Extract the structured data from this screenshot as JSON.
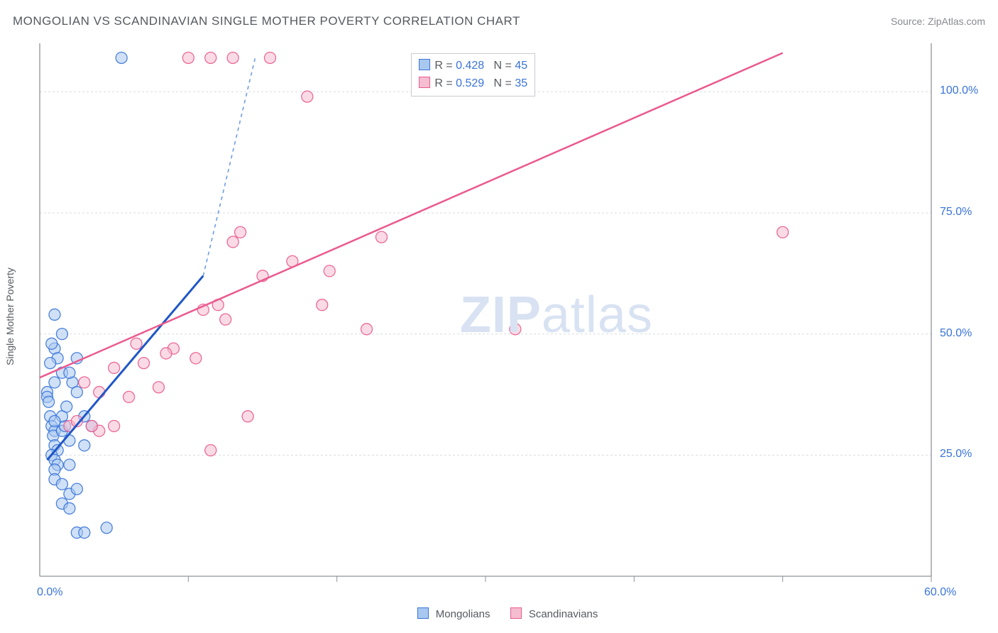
{
  "title": "MONGOLIAN VS SCANDINAVIAN SINGLE MOTHER POVERTY CORRELATION CHART",
  "source": "Source: ZipAtlas.com",
  "ylabel": "Single Mother Poverty",
  "watermark_zip": "ZIP",
  "watermark_atlas": "atlas",
  "chart": {
    "type": "scatter",
    "background_color": "#ffffff",
    "grid_color": "#d9dbdf",
    "grid_dash": "3,3",
    "axis_color": "#8f9398",
    "xlim": [
      0,
      60
    ],
    "ylim": [
      0,
      110
    ],
    "xtick_step": 10,
    "yticks": [
      25,
      50,
      75,
      100
    ],
    "xtick_labels": [
      "0.0%",
      "60.0%"
    ],
    "ytick_labels": [
      "25.0%",
      "50.0%",
      "75.0%",
      "100.0%"
    ],
    "marker_radius": 8,
    "marker_opacity": 0.55,
    "series": [
      {
        "name": "Mongolians",
        "swatch_fill": "#a9c8f0",
        "swatch_stroke": "#3a74d8",
        "marker_fill": "#a9c8f0",
        "marker_stroke": "#3a74d8",
        "R": "0.428",
        "N": "45",
        "trend": {
          "x1": 0.5,
          "y1": 24,
          "x2": 11,
          "y2": 62,
          "ext_x2": 14.5,
          "ext_y2": 107,
          "solid_color": "#1f57c7",
          "solid_width": 3,
          "dash_color": "#6f9de6",
          "dash_width": 1.6,
          "dash": "5,5"
        },
        "points": [
          [
            0.5,
            38
          ],
          [
            0.5,
            37
          ],
          [
            0.6,
            36
          ],
          [
            0.7,
            33
          ],
          [
            0.8,
            31
          ],
          [
            1.0,
            30
          ],
          [
            0.9,
            29
          ],
          [
            1.0,
            27
          ],
          [
            1.2,
            26
          ],
          [
            0.8,
            25
          ],
          [
            1.5,
            30
          ],
          [
            1.7,
            31
          ],
          [
            1.0,
            24
          ],
          [
            1.2,
            23
          ],
          [
            1.0,
            22
          ],
          [
            2.0,
            23
          ],
          [
            1.0,
            20
          ],
          [
            1.5,
            19
          ],
          [
            2.0,
            17
          ],
          [
            1.5,
            15
          ],
          [
            2.5,
            18
          ],
          [
            2.0,
            14
          ],
          [
            2.5,
            9
          ],
          [
            3.0,
            9
          ],
          [
            4.5,
            10
          ],
          [
            1.0,
            47
          ],
          [
            1.2,
            45
          ],
          [
            0.8,
            48
          ],
          [
            1.0,
            54
          ],
          [
            1.5,
            50
          ],
          [
            1.0,
            40
          ],
          [
            1.5,
            42
          ],
          [
            0.7,
            44
          ],
          [
            2.2,
            40
          ],
          [
            2.0,
            42
          ],
          [
            2.5,
            38
          ],
          [
            3.0,
            33
          ],
          [
            3.5,
            31
          ],
          [
            5.5,
            107
          ],
          [
            2.5,
            45
          ],
          [
            2.0,
            28
          ],
          [
            1.5,
            33
          ],
          [
            3.0,
            27
          ],
          [
            1.8,
            35
          ],
          [
            1.0,
            32
          ]
        ]
      },
      {
        "name": "Scandinavians",
        "swatch_fill": "#f5bdd0",
        "swatch_stroke": "#ea5a8e",
        "marker_fill": "#f5bdd0",
        "marker_stroke": "#ea5a8e",
        "R": "0.529",
        "N": "35",
        "trend": {
          "x1": 0,
          "y1": 41,
          "x2": 50,
          "y2": 108,
          "solid_color": "#ea5a8e",
          "solid_width": 2.5
        },
        "points": [
          [
            2.0,
            31
          ],
          [
            2.5,
            32
          ],
          [
            4.0,
            30
          ],
          [
            3.5,
            31
          ],
          [
            5.0,
            31
          ],
          [
            6.0,
            37
          ],
          [
            5.0,
            43
          ],
          [
            7.0,
            44
          ],
          [
            8.0,
            39
          ],
          [
            9.0,
            47
          ],
          [
            10.5,
            45
          ],
          [
            11.0,
            55
          ],
          [
            12.0,
            56
          ],
          [
            12.5,
            53
          ],
          [
            13.0,
            69
          ],
          [
            13.5,
            71
          ],
          [
            14.0,
            33
          ],
          [
            15.0,
            62
          ],
          [
            17.0,
            65
          ],
          [
            19.0,
            56
          ],
          [
            19.5,
            63
          ],
          [
            22.0,
            51
          ],
          [
            23.0,
            70
          ],
          [
            10.0,
            107
          ],
          [
            11.5,
            107
          ],
          [
            13.0,
            107
          ],
          [
            15.5,
            107
          ],
          [
            18.0,
            99
          ],
          [
            11.5,
            26
          ],
          [
            3.0,
            40
          ],
          [
            6.5,
            48
          ],
          [
            32.0,
            51
          ],
          [
            50.0,
            71
          ],
          [
            4.0,
            38
          ],
          [
            8.5,
            46
          ]
        ]
      }
    ]
  },
  "legend": {
    "series1": "Mongolians",
    "series2": "Scandinavians"
  }
}
